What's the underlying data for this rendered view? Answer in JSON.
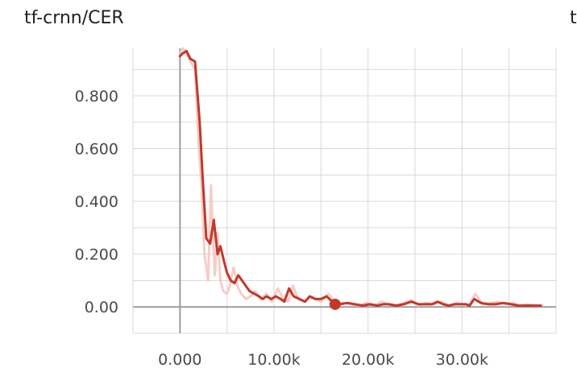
{
  "card": {
    "title": "tf-crnn/CER",
    "next_card_title": "t"
  },
  "chart_data": {
    "type": "line",
    "title": "tf-crnn/CER",
    "xlabel": "",
    "ylabel": "",
    "xlim": [
      -5000,
      40000
    ],
    "ylim": [
      -0.1,
      0.98
    ],
    "x_ticks": [
      0,
      10000,
      20000,
      30000
    ],
    "x_tick_labels": [
      "0.000",
      "10.00k",
      "20.00k",
      "30.00k"
    ],
    "y_ticks": [
      0,
      0.2,
      0.4,
      0.6,
      0.8
    ],
    "y_tick_labels": [
      "0.00",
      "0.200",
      "0.400",
      "0.600",
      "0.800"
    ],
    "grid": true,
    "colors": {
      "smoothed": "#c0392b",
      "raw": "#f2c6bd",
      "grid": "#d9d9d9",
      "axis": "#9e9e9e"
    },
    "series": [
      {
        "role": "smoothed",
        "x": [
          0,
          250,
          700,
          1100,
          1600,
          2100,
          2400,
          2800,
          3200,
          3600,
          4000,
          4300,
          4700,
          5000,
          5400,
          5800,
          6200,
          6600,
          7000,
          7400,
          7900,
          8400,
          8800,
          9200,
          9700,
          10200,
          10700,
          11100,
          11600,
          12100,
          12700,
          13300,
          13800,
          14400,
          15000,
          15600,
          16200,
          17000,
          17800,
          18600,
          19400,
          20200,
          21000,
          21600,
          22200,
          23000,
          23800,
          24600,
          25400,
          26200,
          26800,
          27400,
          28000,
          28600,
          29200,
          29800,
          30400,
          30800,
          31300,
          32000,
          32800,
          33600,
          34400,
          35200,
          36000,
          36800,
          37600,
          38400
        ],
        "y": [
          0.95,
          0.96,
          0.97,
          0.94,
          0.93,
          0.7,
          0.5,
          0.26,
          0.24,
          0.33,
          0.2,
          0.23,
          0.17,
          0.13,
          0.1,
          0.09,
          0.12,
          0.1,
          0.08,
          0.06,
          0.05,
          0.04,
          0.03,
          0.04,
          0.03,
          0.04,
          0.03,
          0.02,
          0.07,
          0.04,
          0.03,
          0.02,
          0.04,
          0.03,
          0.03,
          0.04,
          0.02,
          0.01,
          0.015,
          0.01,
          0.005,
          0.01,
          0.005,
          0.01,
          0.01,
          0.005,
          0.01,
          0.02,
          0.01,
          0.01,
          0.01,
          0.02,
          0.01,
          0.005,
          0.01,
          0.01,
          0.01,
          0.005,
          0.03,
          0.015,
          0.01,
          0.01,
          0.015,
          0.01,
          0.005,
          0.005,
          0.005,
          0.005
        ]
      },
      {
        "role": "raw",
        "x": [
          0,
          300,
          700,
          1100,
          1600,
          2000,
          2300,
          2600,
          3000,
          3300,
          3700,
          4000,
          4300,
          4600,
          5000,
          5300,
          5700,
          6100,
          6500,
          7000,
          7500,
          8000,
          8600,
          9200,
          9800,
          10400,
          11000,
          11500,
          12000,
          12600,
          13200,
          13800,
          14400,
          15000,
          15800,
          16600,
          17400,
          18200,
          19000,
          19800,
          20600,
          21400,
          22200,
          23000,
          23800,
          24600,
          25400,
          26200,
          27000,
          27800,
          28600,
          29400,
          30200,
          30800,
          31400,
          32200,
          33000,
          33800,
          34600,
          35400,
          36200,
          37000,
          37800,
          38400
        ],
        "y": [
          0.96,
          0.98,
          0.96,
          0.93,
          0.9,
          0.6,
          0.45,
          0.2,
          0.1,
          0.46,
          0.12,
          0.28,
          0.1,
          0.06,
          0.05,
          0.08,
          0.15,
          0.08,
          0.05,
          0.03,
          0.04,
          0.06,
          0.03,
          0.05,
          0.02,
          0.07,
          0.03,
          0.02,
          0.08,
          0.03,
          0.02,
          0.04,
          0.03,
          0.02,
          0.05,
          0.01,
          0.015,
          0.01,
          0.005,
          0.015,
          0.005,
          0.02,
          0.01,
          0.005,
          0.015,
          0.025,
          0.005,
          0.015,
          0.01,
          0.02,
          0.005,
          0.015,
          0.01,
          0.01,
          0.05,
          0.01,
          0.015,
          0.02,
          0.01,
          0.015,
          0.005,
          0.01,
          0.005,
          0.005
        ]
      }
    ],
    "marker": {
      "x": 16500,
      "y": 0.01
    }
  }
}
